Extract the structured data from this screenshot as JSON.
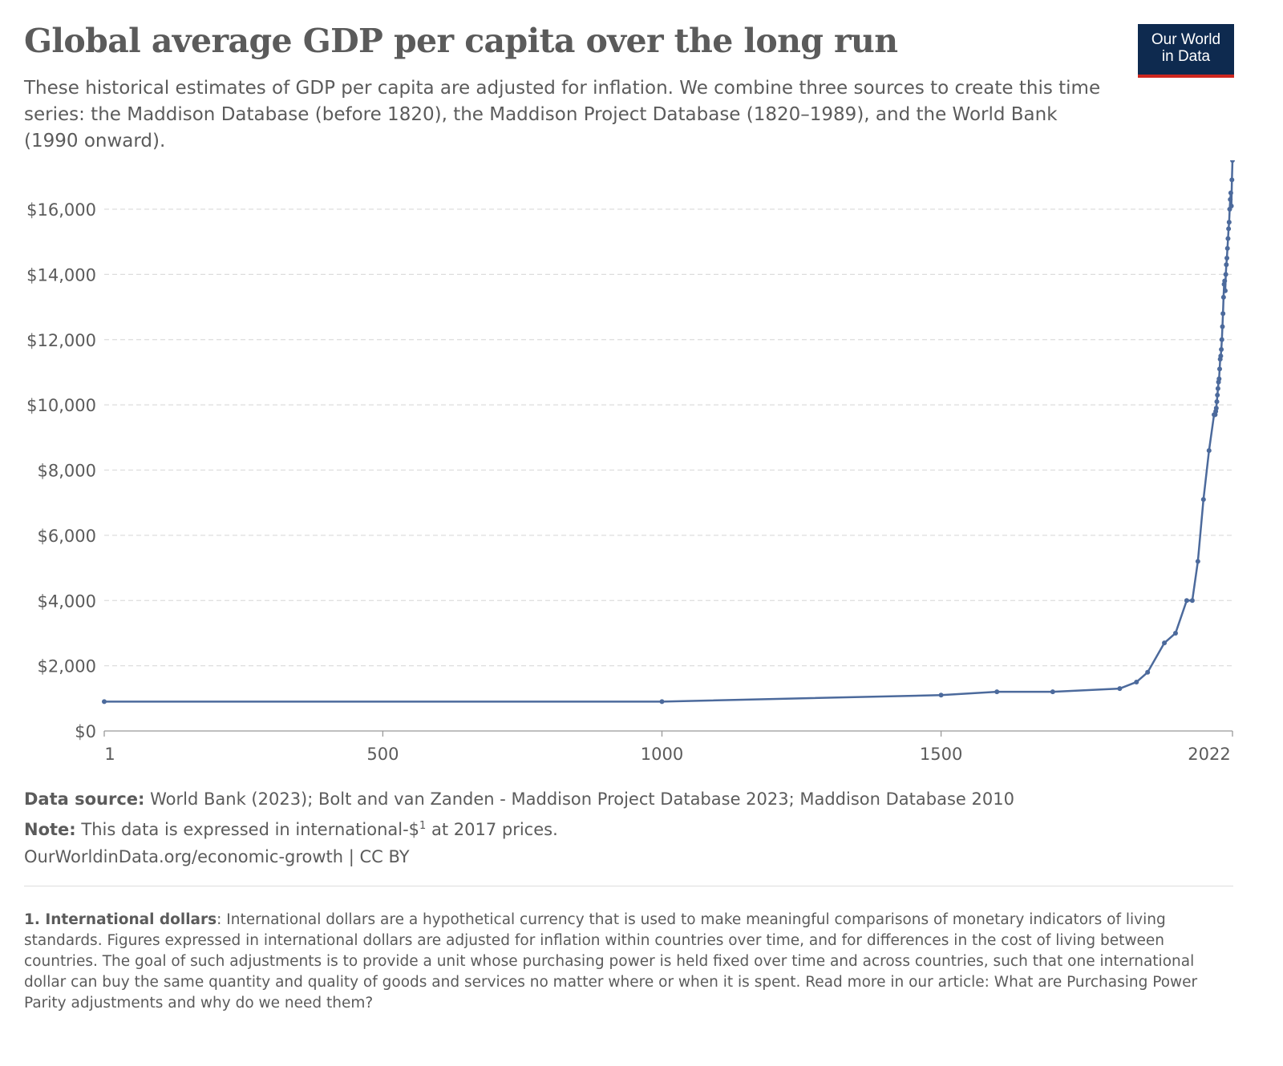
{
  "header": {
    "title": "Global average GDP per capita over the long run",
    "subtitle": "These historical estimates of GDP per capita are adjusted for inflation. We combine three sources to create this time series: the Maddison Database (before 1820), the Maddison Project Database (1820–1989), and the World Bank (1990 onward).",
    "logo_line1": "Our World",
    "logo_line2": "in Data"
  },
  "footer": {
    "source_label": "Data source:",
    "source_text": "World Bank (2023); Bolt and van Zanden - Maddison Project Database 2023; Maddison Database 2010",
    "note_label": "Note:",
    "note_text_before": "This data is expressed in international-$",
    "note_sup": "1",
    "note_text_after": " at 2017 prices.",
    "url": "OurWorldinData.org/economic-growth",
    "license": " | CC BY"
  },
  "footnote": {
    "label": "1. International dollars",
    "text": ": International dollars are a hypothetical currency that is used to make meaningful comparisons of monetary indicators of living standards. Figures expressed in international dollars are adjusted for inflation within countries over time, and for differences in the cost of living between countries. The goal of such adjustments is to provide a unit whose purchasing power is held fixed over time and across countries, such that one international dollar can buy the same quantity and quality of goods and services no matter where or when it is spent. Read more in our article: ",
    "link_text": "What are Purchasing Power Parity adjustments and why do we need them?"
  },
  "colors": {
    "line": "#4c6a9c",
    "grid": "#dddddd",
    "logo_bg": "#0e2a4f",
    "logo_accent": "#ce261e"
  },
  "chart_data": {
    "type": "line",
    "title": "Global average GDP per capita over the long run",
    "xlabel": "",
    "ylabel": "",
    "xlim": [
      1,
      2022
    ],
    "ylim": [
      0,
      17500
    ],
    "x_ticks": [
      1,
      500,
      1000,
      1500,
      2022
    ],
    "x_tick_labels": [
      "1",
      "500",
      "1000",
      "1500",
      "2022"
    ],
    "y_ticks": [
      0,
      2000,
      4000,
      6000,
      8000,
      10000,
      12000,
      14000,
      16000
    ],
    "y_tick_labels": [
      "$0",
      "$2,000",
      "$4,000",
      "$6,000",
      "$8,000",
      "$10,000",
      "$12,000",
      "$14,000",
      "$16,000"
    ],
    "grid": "horizontal dashed",
    "markers": true,
    "series": [
      {
        "x": [
          1,
          1000,
          1500,
          1600,
          1700,
          1820,
          1850,
          1870,
          1900,
          1920,
          1940,
          1950,
          1960,
          1970,
          1980,
          1989,
          1990,
          1991,
          1992,
          1993,
          1994,
          1995,
          1996,
          1997,
          1998,
          1999,
          2000,
          2001,
          2002,
          2003,
          2004,
          2005,
          2006,
          2007,
          2008,
          2009,
          2010,
          2011,
          2012,
          2013,
          2014,
          2015,
          2016,
          2017,
          2018,
          2019,
          2020,
          2021,
          2022
        ],
        "values": [
          900,
          900,
          1100,
          1200,
          1200,
          1300,
          1500,
          1800,
          2700,
          3000,
          4000,
          4000,
          5200,
          7100,
          8600,
          9700,
          9700,
          9700,
          9800,
          9900,
          10100,
          10300,
          10500,
          10700,
          10800,
          11100,
          11400,
          11500,
          11700,
          12000,
          12400,
          12800,
          13300,
          13700,
          13800,
          13500,
          14000,
          14300,
          14500,
          14800,
          15100,
          15400,
          15600,
          16000,
          16300,
          16500,
          16100,
          16900,
          17500
        ]
      }
    ]
  }
}
